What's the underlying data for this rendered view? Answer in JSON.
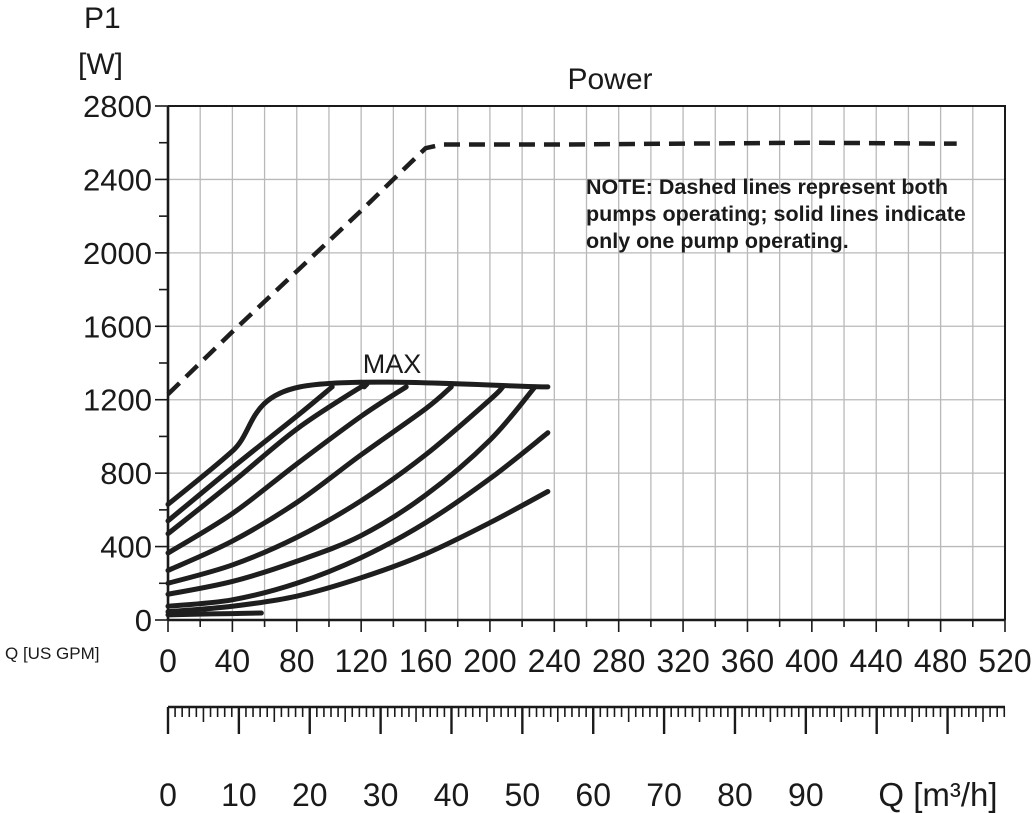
{
  "chart_data": {
    "type": "line",
    "title": "Power",
    "ylabel_line1": "P1",
    "ylabel_line2": "[W]",
    "xlabel_gpm": "Q [US GPM]",
    "xlabel_m3h": "Q [m³/h]",
    "ylim": [
      0,
      2800
    ],
    "xlim_gpm": [
      0,
      520
    ],
    "yticks": [
      0,
      400,
      800,
      1200,
      1600,
      2000,
      2400,
      2800
    ],
    "xticks_gpm": [
      0,
      40,
      80,
      120,
      160,
      200,
      240,
      280,
      320,
      360,
      400,
      440,
      480,
      520
    ],
    "xticks_m3h": [
      0,
      10,
      20,
      30,
      40,
      50,
      60,
      70,
      80,
      90
    ],
    "grid": true,
    "annotations": {
      "max_label": "MAX",
      "note": "NOTE: Dashed lines represent both pumps operating; solid lines indicate only one pump operating."
    },
    "series": [
      {
        "style": "dashed",
        "x": [
          0,
          40,
          80,
          120,
          160,
          170,
          240,
          320,
          400,
          480,
          490
        ],
        "y": [
          1230,
          1570,
          1900,
          2230,
          2570,
          2590,
          2590,
          2595,
          2600,
          2595,
          2595
        ]
      },
      {
        "style": "solid",
        "x": [
          0,
          40,
          82,
          236
        ],
        "y": [
          630,
          920,
          1270,
          1270
        ]
      },
      {
        "style": "solid",
        "x": [
          0,
          40,
          80,
          102
        ],
        "y": [
          540,
          830,
          1110,
          1270
        ]
      },
      {
        "style": "solid",
        "x": [
          0,
          40,
          80,
          120,
          122
        ],
        "y": [
          470,
          750,
          1040,
          1270,
          1270
        ]
      },
      {
        "style": "solid",
        "x": [
          0,
          40,
          80,
          120,
          148
        ],
        "y": [
          365,
          580,
          850,
          1110,
          1270
        ]
      },
      {
        "style": "solid",
        "x": [
          0,
          40,
          80,
          120,
          160,
          176
        ],
        "y": [
          270,
          430,
          640,
          900,
          1150,
          1270
        ]
      },
      {
        "style": "solid",
        "x": [
          0,
          40,
          80,
          120,
          160,
          200,
          208
        ],
        "y": [
          200,
          300,
          450,
          650,
          900,
          1200,
          1270
        ]
      },
      {
        "style": "solid",
        "x": [
          0,
          40,
          80,
          120,
          160,
          200,
          228
        ],
        "y": [
          140,
          210,
          320,
          460,
          680,
          980,
          1270
        ]
      },
      {
        "style": "solid",
        "x": [
          0,
          40,
          80,
          120,
          160,
          200,
          236
        ],
        "y": [
          75,
          110,
          200,
          340,
          530,
          770,
          1020
        ]
      },
      {
        "style": "solid",
        "x": [
          0,
          40,
          80,
          120,
          160,
          200,
          236
        ],
        "y": [
          45,
          75,
          130,
          230,
          360,
          530,
          700
        ]
      },
      {
        "style": "solid",
        "x": [
          0,
          20,
          40,
          58
        ],
        "y": [
          28,
          32,
          35,
          38
        ]
      }
    ]
  }
}
